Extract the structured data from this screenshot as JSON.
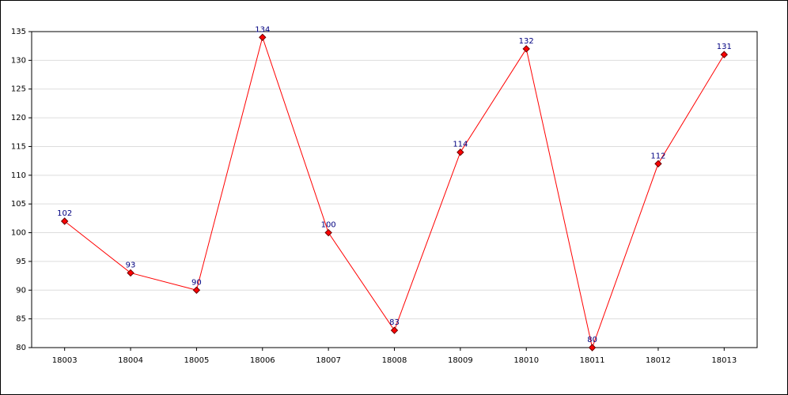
{
  "chart_data": {
    "type": "line",
    "categories": [
      "18003",
      "18004",
      "18005",
      "18006",
      "18007",
      "18008",
      "18009",
      "18010",
      "18011",
      "18012",
      "18013"
    ],
    "values": [
      102,
      93,
      90,
      134,
      100,
      83,
      114,
      132,
      80,
      112,
      131
    ],
    "color": "#ff0000",
    "ylim": [
      80,
      135
    ],
    "yticks": [
      80,
      85,
      90,
      95,
      100,
      105,
      110,
      115,
      120,
      125,
      130,
      135
    ],
    "grid": true
  }
}
